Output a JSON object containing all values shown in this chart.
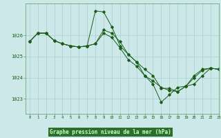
{
  "title": "Graphe pression niveau de la mer (hPa)",
  "bg_color": "#cce8e8",
  "plot_bg_color": "#cce8e8",
  "grid_color": "#aacece",
  "line_color": "#1a5c1a",
  "xlabel_bg": "#2d6e2d",
  "xlabel_fg": "#cce8cc",
  "xlim": [
    -0.5,
    23
  ],
  "ylim": [
    1022.3,
    1027.5
  ],
  "yticks": [
    1023,
    1024,
    1025,
    1026
  ],
  "xticks": [
    0,
    1,
    2,
    3,
    4,
    5,
    6,
    7,
    8,
    9,
    10,
    11,
    12,
    13,
    14,
    15,
    16,
    17,
    18,
    19,
    20,
    21,
    22,
    23
  ],
  "series": [
    {
      "x": [
        0,
        1,
        2,
        3,
        4,
        5,
        6,
        7,
        8,
        9,
        10,
        11,
        12,
        13,
        14,
        15,
        16,
        17,
        18,
        19,
        20,
        21,
        22,
        23
      ],
      "y": [
        1025.7,
        1026.1,
        1026.1,
        1025.75,
        1025.6,
        1025.5,
        1025.45,
        1025.5,
        1027.15,
        1027.1,
        1026.4,
        1025.5,
        1025.1,
        1024.75,
        1024.4,
        1024.1,
        1023.5,
        1023.5,
        1023.35,
        1023.6,
        1024.1,
        1024.4,
        1024.45,
        1024.4
      ]
    },
    {
      "x": [
        0,
        1,
        2,
        3,
        4,
        5,
        6,
        7,
        8,
        9,
        10,
        11,
        12,
        13,
        14,
        15,
        16,
        17,
        18,
        19,
        20,
        21,
        22,
        23
      ],
      "y": [
        1025.7,
        1026.1,
        1026.1,
        1025.75,
        1025.6,
        1025.5,
        1025.45,
        1025.5,
        1025.6,
        1026.25,
        1026.1,
        1025.7,
        1025.1,
        1024.75,
        1024.1,
        1023.7,
        1022.85,
        1023.2,
        1023.55,
        1023.6,
        1024.0,
        1024.35,
        1024.45,
        1024.4
      ]
    },
    {
      "x": [
        0,
        1,
        2,
        3,
        4,
        5,
        6,
        7,
        8,
        9,
        10,
        11,
        12,
        13,
        14,
        15,
        16,
        17,
        18,
        19,
        20,
        21,
        22,
        23
      ],
      "y": [
        1025.7,
        1026.1,
        1026.1,
        1025.75,
        1025.6,
        1025.5,
        1025.45,
        1025.5,
        1025.6,
        1026.1,
        1025.9,
        1025.4,
        1024.85,
        1024.55,
        1024.1,
        1023.85,
        1023.55,
        1023.4,
        1023.35,
        1023.6,
        1023.7,
        1024.1,
        1024.45,
        1024.4
      ]
    }
  ]
}
